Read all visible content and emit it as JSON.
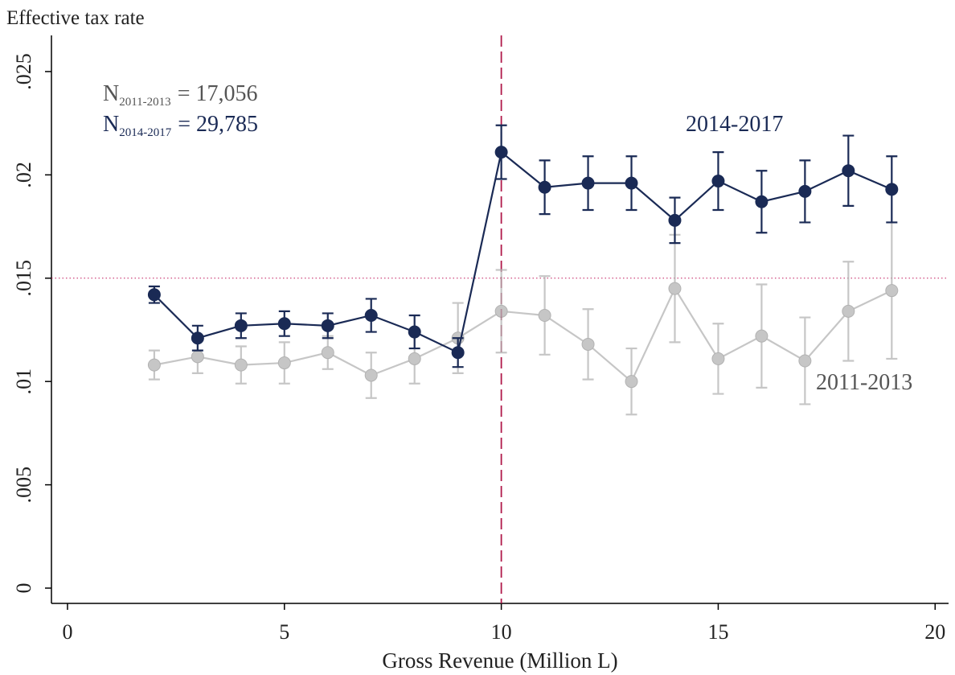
{
  "chart_data": {
    "type": "line",
    "ylabel": "Effective tax rate",
    "xlabel": "Gross Revenue (Million L)",
    "x": [
      2,
      3,
      4,
      5,
      6,
      7,
      8,
      9,
      10,
      11,
      12,
      13,
      14,
      15,
      16,
      17,
      18,
      19
    ],
    "series": [
      {
        "name": "2011-2013",
        "color": "#b4b4b4",
        "values": [
          0.0108,
          0.0112,
          0.0108,
          0.0109,
          0.0114,
          0.0103,
          0.0111,
          0.0121,
          0.0134,
          0.0132,
          0.0118,
          0.01,
          0.0145,
          0.0111,
          0.0122,
          0.011,
          0.0134,
          0.0144
        ],
        "errors": [
          0.0007,
          0.0008,
          0.0009,
          0.001,
          0.0008,
          0.0011,
          0.0012,
          0.0017,
          0.002,
          0.0019,
          0.0017,
          0.0016,
          0.0026,
          0.0017,
          0.0025,
          0.0021,
          0.0024,
          0.0033
        ]
      },
      {
        "name": "2014-2017",
        "color": "#1a2a55",
        "values": [
          0.0142,
          0.0121,
          0.0127,
          0.0128,
          0.0127,
          0.0132,
          0.0124,
          0.0114,
          0.0211,
          0.0194,
          0.0196,
          0.0196,
          0.0178,
          0.0197,
          0.0187,
          0.0192,
          0.0202,
          0.0193
        ],
        "errors": [
          0.0004,
          0.0006,
          0.0006,
          0.0006,
          0.0006,
          0.0008,
          0.0008,
          0.0007,
          0.0013,
          0.0013,
          0.0013,
          0.0013,
          0.0011,
          0.0014,
          0.0015,
          0.0015,
          0.0017,
          0.0016
        ]
      }
    ],
    "xlim": [
      -0.37,
      20.31
    ],
    "ylim": [
      -0.00074,
      0.02675
    ],
    "xticks": [
      0,
      5,
      10,
      15,
      20
    ],
    "yticks": [
      0,
      {
        "value": 0.005,
        "label": ".005"
      },
      {
        "value": 0.01,
        "label": ".01"
      },
      {
        "value": 0.015,
        "label": ".015"
      },
      {
        "value": 0.02,
        "label": ".02"
      },
      {
        "value": 0.025,
        "label": ".025"
      }
    ],
    "reference_lines": {
      "x": 10,
      "x_color": "#b0194a",
      "y": 0.015,
      "y_color": "#c2185b"
    },
    "n_labels": [
      {
        "symbol": "N",
        "subscript": "2011-2013",
        "text": "= 17,056",
        "color": "#555555"
      },
      {
        "symbol": "N",
        "subscript": "2014-2017",
        "text": "= 29,785",
        "color": "#1a2a55"
      }
    ]
  }
}
